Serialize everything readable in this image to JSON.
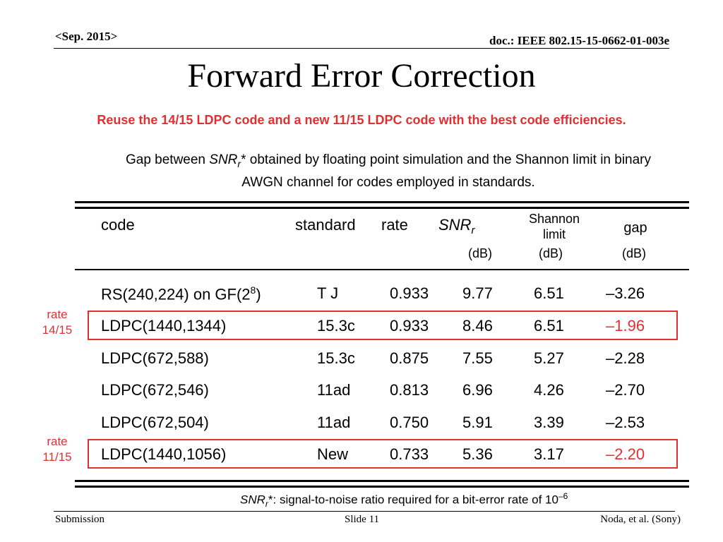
{
  "header": {
    "date": "<Sep. 2015>",
    "doc": "doc.: IEEE 802.15-15-0662-01-003e"
  },
  "title": "Forward Error Correction",
  "subtitle": "Reuse the 14/15 LDPC code and a new 11/15 LDPC code with the best code efficiencies.",
  "description": {
    "pre": "Gap between ",
    "snr": "SNR",
    "snr_sub": "r",
    "post_line1": "* obtained by floating point simulation and the Shannon limit in binary",
    "line2": "AWGN channel for codes employed in standards."
  },
  "table": {
    "headers": {
      "code": "code",
      "standard": "standard",
      "rate": "rate",
      "snr": "SNR",
      "snr_sub": "r",
      "snr_unit": "(dB)",
      "shannon_l1": "Shannon",
      "shannon_l2": "limit",
      "shannon_unit": "(dB)",
      "gap": "gap",
      "gap_unit": "(dB)"
    },
    "rows": [
      {
        "code": "RS(240,224) on GF(2",
        "code_sup": "8",
        "code_tail": ")",
        "standard": "T J",
        "rate": "0.933",
        "snr": "9.77",
        "shannon": "6.51",
        "gap": "–3.26"
      },
      {
        "code": "LDPC(1440,1344)",
        "code_sup": "",
        "code_tail": "",
        "standard": "15.3c",
        "rate": "0.933",
        "snr": "8.46",
        "shannon": "6.51",
        "gap": "–1.96"
      },
      {
        "code": "LDPC(672,588)",
        "code_sup": "",
        "code_tail": "",
        "standard": "15.3c",
        "rate": "0.875",
        "snr": "7.55",
        "shannon": "5.27",
        "gap": "–2.28"
      },
      {
        "code": "LDPC(672,546)",
        "code_sup": "",
        "code_tail": "",
        "standard": "11ad",
        "rate": "0.813",
        "snr": "6.96",
        "shannon": "4.26",
        "gap": "–2.70"
      },
      {
        "code": "LDPC(672,504)",
        "code_sup": "",
        "code_tail": "",
        "standard": "11ad",
        "rate": "0.750",
        "snr": "5.91",
        "shannon": "3.39",
        "gap": "–2.53"
      },
      {
        "code": "LDPC(1440,1056)",
        "code_sup": "",
        "code_tail": "",
        "standard": "New",
        "rate": "0.733",
        "snr": "5.36",
        "shannon": "3.17",
        "gap": "–2.20"
      }
    ],
    "highlight_labels": {
      "rate14": [
        "rate",
        "14/15"
      ],
      "rate11": [
        "rate",
        "11/15"
      ]
    }
  },
  "footnote": {
    "snr": "SNR",
    "snr_sub": "r",
    "text": "*: signal-to-noise ratio required for a bit-error rate of 10",
    "exp": "–6"
  },
  "footer": {
    "left": "Submission",
    "center": "Slide 11",
    "right": "Noda, et al. (Sony)"
  },
  "colors": {
    "highlight": "#e03030"
  }
}
